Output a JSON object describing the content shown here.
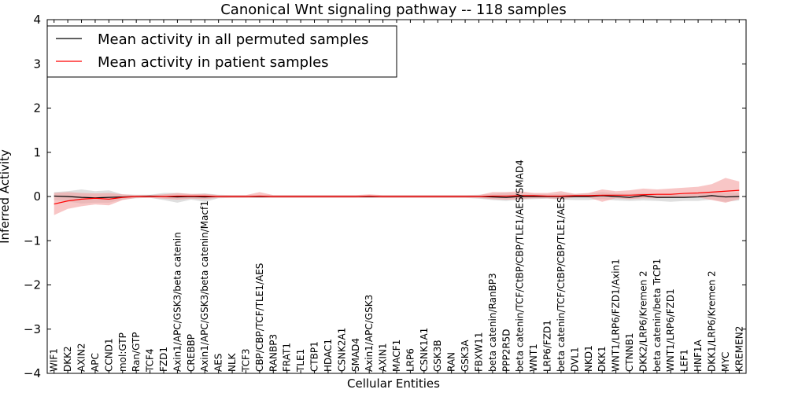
{
  "chart_data": {
    "type": "line",
    "title": "Canonical Wnt signaling pathway -- 118 samples",
    "xlabel": "Cellular Entities",
    "ylabel": "Inferred Activity",
    "ylim": [
      -4,
      4
    ],
    "yticks": [
      "-4",
      "-3",
      "-2",
      "-1",
      "0",
      "1",
      "2",
      "3",
      "4"
    ],
    "ytick_values": [
      -4,
      -3,
      -2,
      -1,
      0,
      1,
      2,
      3,
      4
    ],
    "legend_position": "top-left",
    "categories": [
      "WIF1",
      "DKK2",
      "AXIN2",
      "APC",
      "CCND1",
      "mol:GTP",
      "Ran/GTP",
      "TCF4",
      "FZD1",
      "Axin1/APC/GSK3/beta catenin",
      "CREBBP",
      "Axin1/APC/GSK3/beta catenin/Macf1",
      "AES",
      "NLK",
      "TCF3",
      "CBP/CBP/TCF/TLE1/AES",
      "RANBP3",
      "FRAT1",
      "TLE1",
      "CTBP1",
      "HDAC1",
      "CSNK2A1",
      "SMAD4",
      "Axin1/APC/GSK3",
      "AXIN1",
      "MACF1",
      "LRP6",
      "CSNK1A1",
      "GSK3B",
      "RAN",
      "GSK3A",
      "FBXW11",
      "beta catenin/RanBP3",
      "PPP2R5D",
      "beta catenin/TCF/CtBP/CBP/TLE1/AES/SMAD4",
      "WNT1",
      "LRP6/FZD1",
      "beta catenin/TCF/CtBP/CBP/TLE1/AES",
      "DVL1",
      "NKD1",
      "DKK1",
      "WNT1/LRP6/FZD1/Axin1",
      "CTNNB1",
      "DKK2/LRP6/Kremen 2",
      "beta catenin/beta TrCP1",
      "WNT1/LRP6/FZD1",
      "LEF1",
      "HNF1A",
      "DKK1/LRP6/Kremen 2",
      "MYC",
      "KREMEN2"
    ],
    "series": [
      {
        "name": "Mean activity in all permuted samples",
        "color": "#000000",
        "band_color": "#b8b8b8",
        "values": [
          0.01,
          0.0,
          -0.02,
          -0.03,
          -0.02,
          -0.01,
          0.0,
          0.01,
          0.0,
          -0.01,
          0.0,
          -0.01,
          0.0,
          0.0,
          0.0,
          0.0,
          0.0,
          0.0,
          0.0,
          0.0,
          0.0,
          0.0,
          0.0,
          0.0,
          0.0,
          0.0,
          0.0,
          0.0,
          0.0,
          0.0,
          0.0,
          0.0,
          -0.01,
          -0.02,
          0.0,
          0.0,
          0.0,
          0.0,
          0.0,
          0.0,
          0.02,
          0.0,
          -0.02,
          0.02,
          -0.02,
          -0.02,
          -0.02,
          -0.01,
          0.02,
          -0.01,
          0.0
        ],
        "upper": [
          0.1,
          0.12,
          0.16,
          0.12,
          0.14,
          0.05,
          0.04,
          0.04,
          0.08,
          0.08,
          0.05,
          0.07,
          0.04,
          0.03,
          0.03,
          0.03,
          0.03,
          0.03,
          0.03,
          0.03,
          0.03,
          0.03,
          0.03,
          0.03,
          0.03,
          0.03,
          0.03,
          0.03,
          0.03,
          0.03,
          0.03,
          0.04,
          0.06,
          0.08,
          0.06,
          0.06,
          0.05,
          0.06,
          0.06,
          0.07,
          0.1,
          0.07,
          0.06,
          0.08,
          0.06,
          0.06,
          0.06,
          0.07,
          0.1,
          0.09,
          0.08
        ],
        "lower": [
          -0.08,
          -0.11,
          -0.16,
          -0.14,
          -0.14,
          -0.07,
          -0.04,
          -0.03,
          -0.08,
          -0.14,
          -0.07,
          -0.12,
          -0.04,
          -0.03,
          -0.03,
          -0.03,
          -0.03,
          -0.03,
          -0.03,
          -0.03,
          -0.03,
          -0.03,
          -0.03,
          -0.03,
          -0.03,
          -0.03,
          -0.03,
          -0.03,
          -0.03,
          -0.03,
          -0.03,
          -0.05,
          -0.08,
          -0.1,
          -0.07,
          -0.06,
          -0.05,
          -0.07,
          -0.08,
          -0.08,
          -0.06,
          -0.09,
          -0.1,
          -0.09,
          -0.1,
          -0.12,
          -0.1,
          -0.1,
          -0.07,
          -0.12,
          -0.09
        ]
      },
      {
        "name": "Mean activity in patient samples",
        "color": "#ff0000",
        "band_color": "#f4a0a0",
        "values": [
          -0.17,
          -0.1,
          -0.06,
          -0.04,
          -0.06,
          -0.02,
          0.0,
          0.0,
          0.0,
          0.01,
          0.01,
          0.01,
          0.0,
          0.0,
          0.0,
          0.01,
          0.0,
          0.0,
          0.0,
          0.0,
          0.0,
          0.0,
          0.0,
          0.01,
          0.0,
          0.0,
          0.0,
          0.0,
          0.0,
          0.0,
          0.0,
          0.0,
          0.01,
          0.01,
          0.02,
          0.02,
          0.01,
          0.01,
          0.02,
          0.02,
          0.03,
          0.03,
          0.03,
          0.04,
          0.05,
          0.05,
          0.07,
          0.08,
          0.1,
          0.12,
          0.14
        ],
        "upper": [
          0.08,
          0.1,
          0.08,
          0.07,
          0.08,
          0.05,
          0.03,
          0.03,
          0.05,
          0.08,
          0.06,
          0.06,
          0.03,
          0.03,
          0.03,
          0.1,
          0.03,
          0.03,
          0.03,
          0.03,
          0.03,
          0.03,
          0.03,
          0.05,
          0.03,
          0.03,
          0.03,
          0.03,
          0.03,
          0.03,
          0.03,
          0.03,
          0.1,
          0.1,
          0.12,
          0.08,
          0.08,
          0.12,
          0.06,
          0.08,
          0.16,
          0.12,
          0.14,
          0.18,
          0.16,
          0.18,
          0.2,
          0.22,
          0.28,
          0.42,
          0.34
        ],
        "lower": [
          -0.42,
          -0.28,
          -0.22,
          -0.18,
          -0.2,
          -0.08,
          -0.03,
          -0.03,
          -0.05,
          -0.07,
          -0.05,
          -0.06,
          -0.03,
          -0.03,
          -0.03,
          -0.03,
          -0.03,
          -0.03,
          -0.03,
          -0.03,
          -0.03,
          -0.03,
          -0.03,
          -0.03,
          -0.03,
          -0.03,
          -0.03,
          -0.03,
          -0.03,
          -0.03,
          -0.03,
          -0.03,
          -0.06,
          -0.07,
          -0.06,
          -0.04,
          -0.04,
          -0.06,
          -0.02,
          -0.02,
          -0.12,
          -0.04,
          -0.06,
          -0.04,
          -0.04,
          -0.03,
          -0.02,
          -0.02,
          -0.08,
          -0.14,
          -0.06
        ]
      }
    ]
  }
}
